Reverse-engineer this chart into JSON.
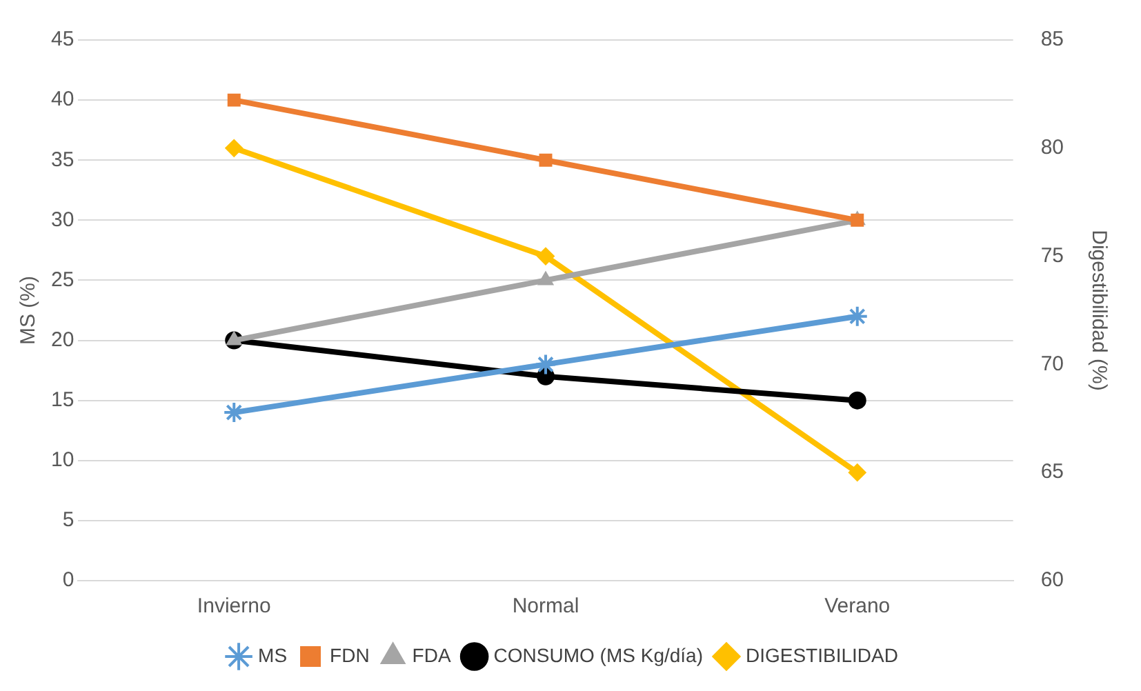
{
  "chart_data": {
    "type": "line",
    "ylabel": "MS (%)",
    "y2label": "Digestibilidad (%)",
    "categories": [
      "Invierno",
      "Normal",
      "Verano"
    ],
    "series": [
      {
        "name": "MS",
        "color": "#5b9bd5",
        "marker": "cross",
        "values": [
          14,
          18,
          22
        ]
      },
      {
        "name": "FDN",
        "color": "#ed7d31",
        "marker": "square",
        "values": [
          40,
          35,
          30
        ]
      },
      {
        "name": "FDA",
        "color": "#a5a5a5",
        "marker": "triangle",
        "values": [
          20,
          25,
          30
        ]
      },
      {
        "name": "CONSUMO (MS Kg/día)",
        "color": "#000000",
        "marker": "circle",
        "values": [
          20,
          17,
          15
        ]
      },
      {
        "name": "DIGESTIBILIDAD",
        "color": "#ffc000",
        "marker": "diamond",
        "axis": "y2",
        "values": [
          80,
          75,
          65
        ]
      }
    ],
    "ylim": [
      0,
      45
    ],
    "yticks": [
      0,
      5,
      10,
      15,
      20,
      25,
      30,
      35,
      40,
      45
    ],
    "y2lim": [
      60,
      85
    ],
    "y2ticks": [
      60,
      65,
      70,
      75,
      80,
      85
    ],
    "grid": "y",
    "legend": "bottom",
    "line_style": "solid"
  }
}
